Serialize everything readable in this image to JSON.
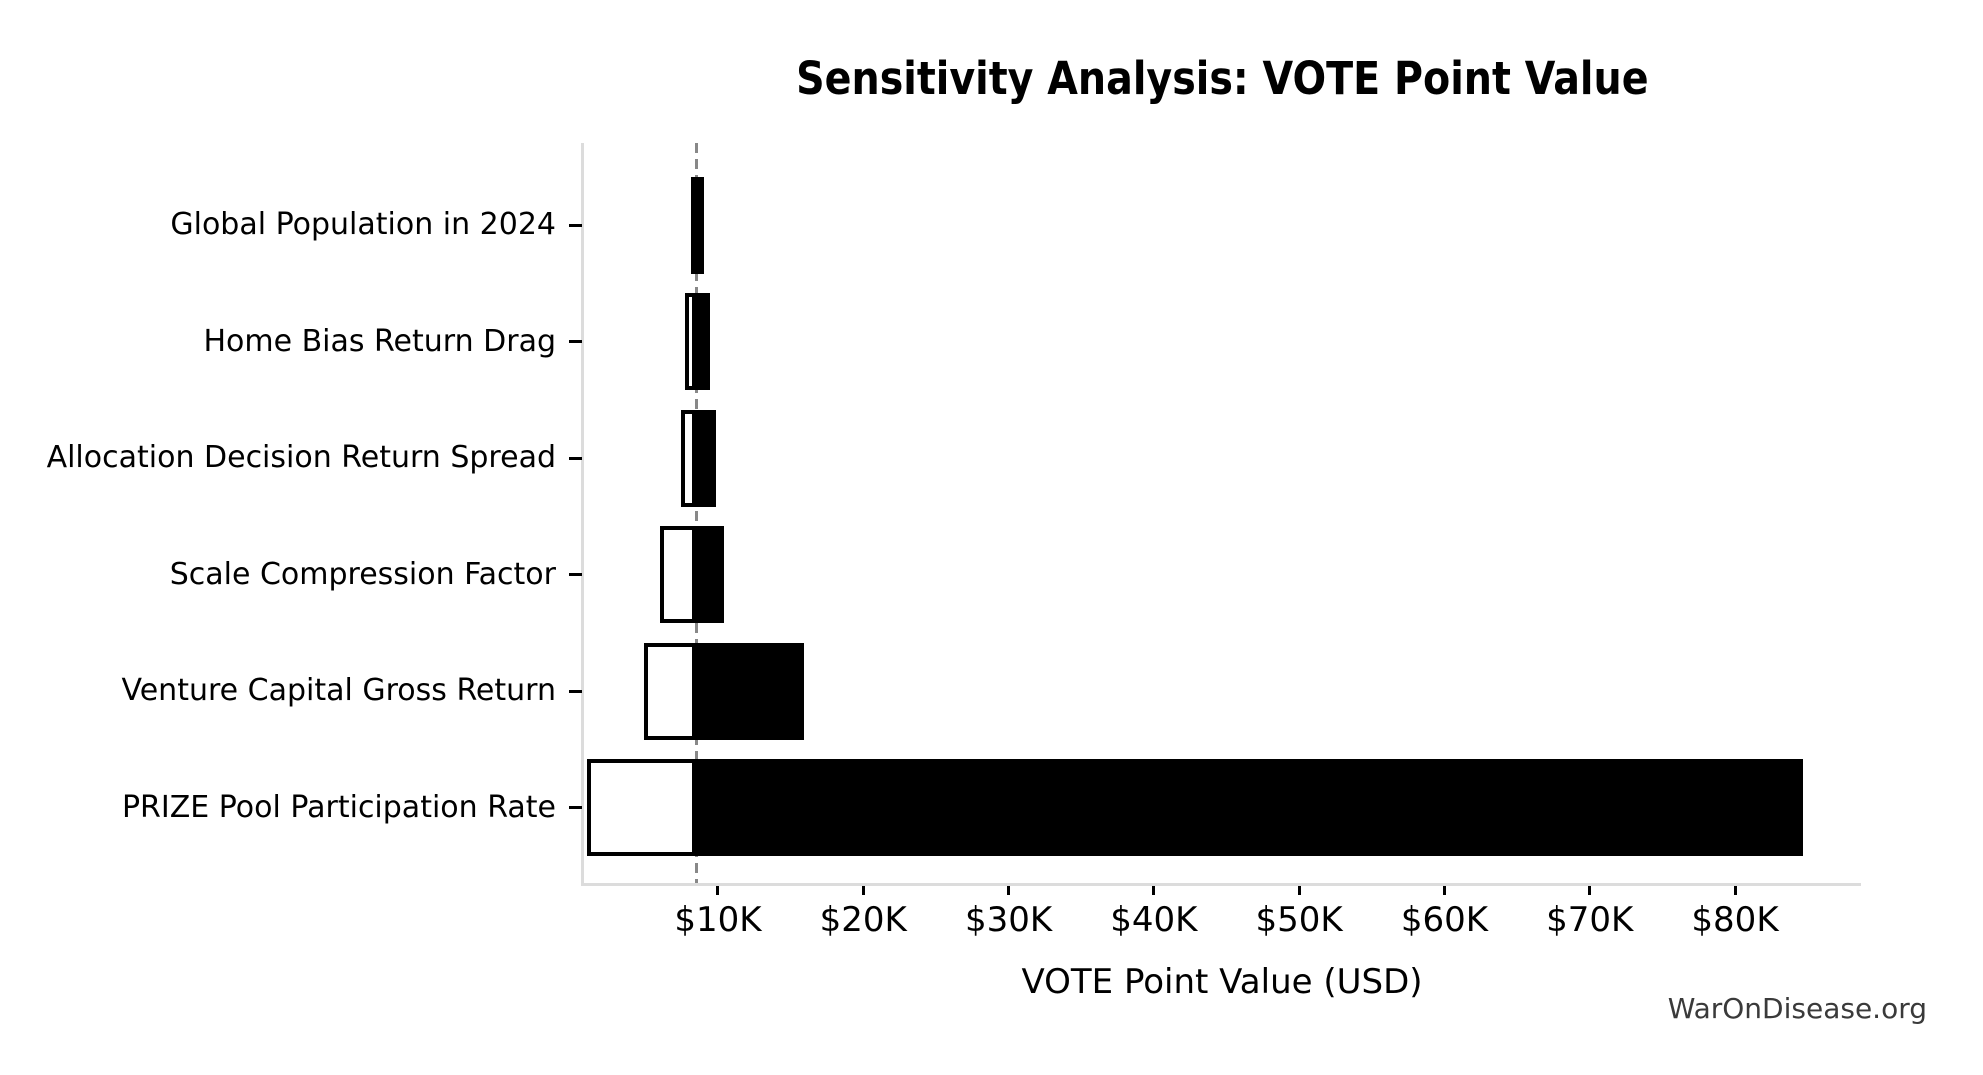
{
  "watermark": "WarOnDisease.org",
  "chart_data": {
    "type": "bar",
    "subtype": "tornado-sensitivity",
    "orientation": "horizontal",
    "title": "Sensitivity Analysis: VOTE Point Value",
    "xlabel": "VOTE Point Value (USD)",
    "ylabel": "",
    "xlim": [
      780,
      88600
    ],
    "baseline_value": 8520,
    "grid": false,
    "legend_position": "none",
    "x_ticks": [
      {
        "value": 10000,
        "label": "$10K"
      },
      {
        "value": 20000,
        "label": "$20K"
      },
      {
        "value": 30000,
        "label": "$30K"
      },
      {
        "value": 40000,
        "label": "$40K"
      },
      {
        "value": 50000,
        "label": "$50K"
      },
      {
        "value": 60000,
        "label": "$60K"
      },
      {
        "value": 70000,
        "label": "$70K"
      },
      {
        "value": 80000,
        "label": "$80K"
      }
    ],
    "rows": [
      {
        "label": "Global Population in 2024",
        "low": 8140,
        "high": 8970
      },
      {
        "label": "Home Bias Return Drag",
        "low": 7730,
        "high": 9450
      },
      {
        "label": "Allocation Decision Return Spread",
        "low": 7450,
        "high": 9860
      },
      {
        "label": "Scale Compression Factor",
        "low": 6010,
        "high": 10410
      },
      {
        "label": "Venture Capital Gross Return",
        "low": 4910,
        "high": 15920
      },
      {
        "label": "PRIZE Pool Participation Rate",
        "low": 990,
        "high": 84660
      }
    ],
    "colors": {
      "low_bar_fill": "#ffffff",
      "high_bar_fill": "#000000",
      "bar_edge": "#000000",
      "baseline_line": "#888888",
      "spine": "#dcdcdc",
      "text": "#000000",
      "watermark_text": "#3a3a3a"
    }
  }
}
